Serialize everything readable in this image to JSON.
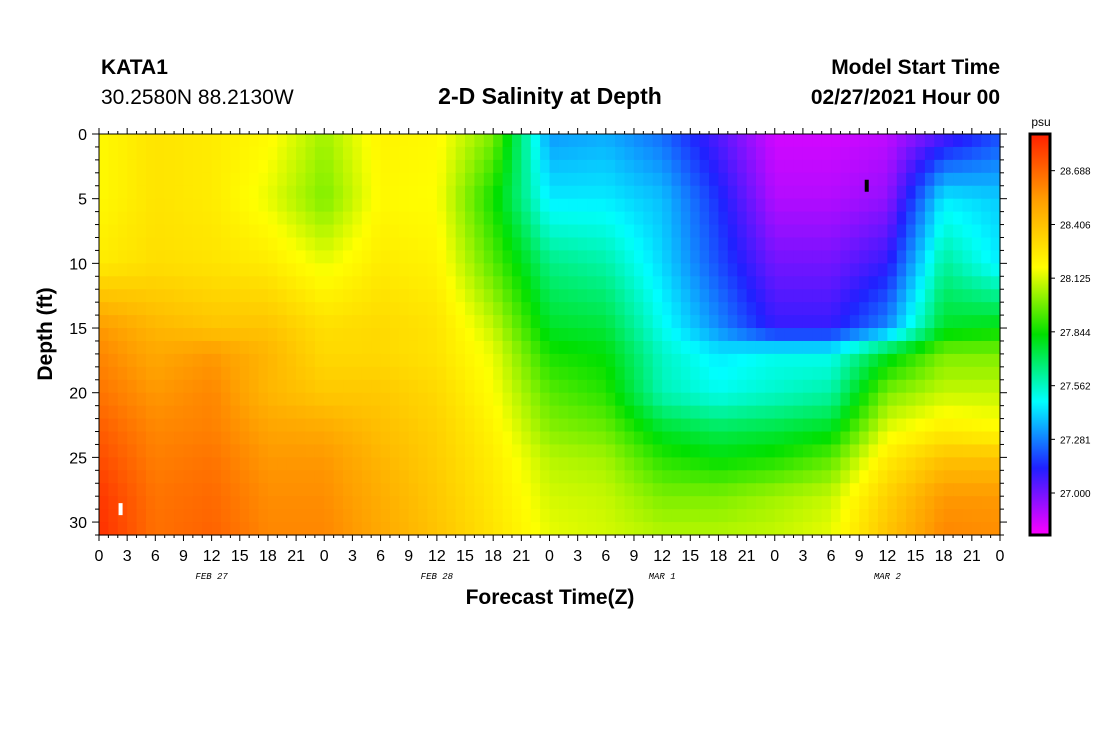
{
  "header": {
    "station": "KATA1",
    "coords": "30.2580N 88.2130W",
    "title": "2-D Salinity at Depth",
    "start_label": "Model Start Time",
    "start_value": "02/27/2021 Hour 00"
  },
  "chart_data": {
    "type": "heatmap",
    "title": "2-D Salinity at Depth",
    "xlabel": "Forecast Time(Z)",
    "ylabel": "Depth (ft)",
    "x_tick_labels": [
      "0",
      "3",
      "6",
      "9",
      "12",
      "15",
      "18",
      "21",
      "0",
      "3",
      "6",
      "9",
      "12",
      "15",
      "18",
      "21",
      "0",
      "3",
      "6",
      "9",
      "12",
      "15",
      "18",
      "21",
      "0",
      "3",
      "6",
      "9",
      "12",
      "15",
      "18",
      "21",
      "0"
    ],
    "x_range_hours": [
      0,
      96
    ],
    "day_labels": [
      {
        "text": "FEB 27",
        "hour": 12
      },
      {
        "text": "FEB 28",
        "hour": 36
      },
      {
        "text": "MAR 1",
        "hour": 60
      },
      {
        "text": "MAR 2",
        "hour": 84
      }
    ],
    "y_ticks": [
      0,
      5,
      10,
      15,
      20,
      25,
      30
    ],
    "y_range_ft": [
      0,
      31
    ],
    "y_reversed": true,
    "colorbar": {
      "unit": "psu",
      "range": [
        26.78,
        28.88
      ],
      "tick_values": [
        27.0,
        27.281,
        27.562,
        27.844,
        28.125,
        28.406,
        28.688
      ],
      "tick_labels": [
        "27.000",
        "27.281",
        "27.562",
        "27.844",
        "28.125",
        "28.406",
        "28.688"
      ],
      "colors_low_to_high": [
        "#ff00ff",
        "#2020ff",
        "#00ffff",
        "#00e000",
        "#ffff00",
        "#ffa000",
        "#ff2000"
      ]
    },
    "field_psu": {
      "note": "rows = depth (ft), columns = forecast hour",
      "depth_ft": [
        0,
        5,
        10,
        15,
        17,
        20,
        23,
        25,
        28,
        31
      ],
      "hours": [
        0,
        6,
        12,
        18,
        24,
        30,
        36,
        42,
        48,
        54,
        60,
        66,
        72,
        78,
        84,
        90,
        96
      ],
      "values": [
        [
          28.2,
          28.28,
          28.25,
          28.2,
          28.05,
          28.22,
          28.2,
          28.0,
          27.32,
          27.35,
          27.25,
          27.05,
          26.85,
          26.85,
          26.88,
          27.05,
          27.2
        ],
        [
          28.2,
          28.28,
          28.25,
          28.15,
          28.0,
          28.2,
          28.18,
          27.85,
          27.45,
          27.45,
          27.38,
          27.15,
          26.9,
          26.9,
          26.95,
          27.45,
          27.4
        ],
        [
          28.25,
          28.3,
          28.28,
          28.25,
          28.15,
          28.25,
          28.22,
          27.95,
          27.65,
          27.6,
          27.42,
          27.2,
          27.0,
          27.0,
          27.1,
          27.62,
          27.45
        ],
        [
          28.55,
          28.45,
          28.4,
          28.4,
          28.3,
          28.32,
          28.28,
          28.1,
          27.78,
          27.75,
          27.5,
          27.3,
          27.1,
          27.1,
          27.3,
          27.78,
          27.82
        ],
        [
          28.6,
          28.5,
          28.55,
          28.45,
          28.32,
          28.32,
          28.28,
          28.15,
          27.86,
          27.82,
          27.56,
          27.45,
          27.5,
          27.5,
          27.78,
          28.0,
          28.0
        ],
        [
          28.65,
          28.55,
          28.6,
          28.45,
          28.38,
          28.38,
          28.32,
          28.18,
          27.95,
          27.88,
          27.58,
          27.5,
          27.55,
          27.6,
          28.0,
          28.1,
          28.1
        ],
        [
          28.72,
          28.6,
          28.62,
          28.52,
          28.5,
          28.42,
          28.35,
          28.22,
          28.02,
          27.98,
          27.78,
          27.72,
          27.75,
          27.8,
          28.15,
          28.25,
          28.2
        ],
        [
          28.76,
          28.62,
          28.65,
          28.55,
          28.55,
          28.45,
          28.36,
          28.24,
          28.08,
          28.05,
          27.88,
          27.82,
          27.86,
          27.95,
          28.25,
          28.4,
          28.4
        ],
        [
          28.82,
          28.65,
          28.68,
          28.58,
          28.58,
          28.48,
          28.38,
          28.26,
          28.12,
          28.1,
          28.0,
          28.0,
          28.05,
          28.1,
          28.35,
          28.55,
          28.55
        ],
        [
          28.84,
          28.66,
          28.7,
          28.6,
          28.6,
          28.5,
          28.4,
          28.28,
          28.15,
          28.12,
          28.08,
          28.08,
          28.1,
          28.15,
          28.4,
          28.6,
          28.58
        ]
      ]
    },
    "markers": [
      {
        "hour": 2.3,
        "depth_ft": 29,
        "color": "#ffffff"
      },
      {
        "hour": 81.8,
        "depth_ft": 4,
        "color": "#000000"
      }
    ]
  }
}
